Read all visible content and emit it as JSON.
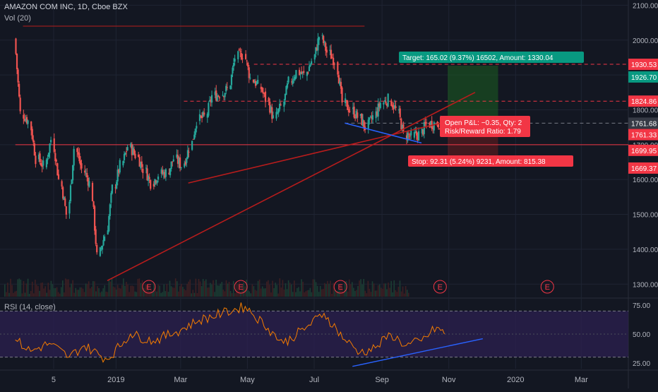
{
  "header": {
    "symbol": "AMAZON COM INC, 1D, Cboe BZX",
    "volume": "Vol (20)"
  },
  "rsi_panel": {
    "label": "RSI (14, close)",
    "ticks": [
      "75.00",
      "50.00",
      "25.00"
    ]
  },
  "colors": {
    "background": "#131722",
    "grid": "#1f2433",
    "up": "#26a69a",
    "down": "#ef5350",
    "trend_red": "#b71c1c",
    "trend_blue": "#2962ff",
    "rsi_line": "#f57c00",
    "rsi_band": "#2a1f4d",
    "target_box": "#1b5e20",
    "target_label": "#089981",
    "stop_label": "#f23645"
  },
  "chart_data": {
    "type": "candlestick",
    "title": "AMAZON COM INC, 1D, Cboe BZX",
    "indicator": "Vol (20)",
    "y_ticks": [
      1300,
      1400,
      1500,
      1600,
      1700,
      1800,
      1900,
      2000,
      2100
    ],
    "ylim": [
      1260,
      2115
    ],
    "x_ticks": [
      "5",
      "2019",
      "Mar",
      "May",
      "Jul",
      "Sep",
      "Nov",
      "2020",
      "Mar"
    ],
    "price_labels": [
      {
        "value": "1930.53",
        "color": "#f23645",
        "style": "dashed"
      },
      {
        "value": "1926.70",
        "color": "#089981",
        "style": "box"
      },
      {
        "value": "1824.86",
        "color": "#f23645",
        "style": "dashed"
      },
      {
        "value": "1761.68",
        "color": "#787b86",
        "style": "dotted"
      },
      {
        "value": "1761.33",
        "color": "#f23645",
        "style": "box"
      },
      {
        "value": "1699.95",
        "color": "#f23645",
        "style": "solid"
      },
      {
        "value": "1669.37",
        "color": "#f23645",
        "style": "box"
      }
    ],
    "horizontal_levels": [
      {
        "value": 2040,
        "from": "2018-10-08",
        "to": "2019-08-16",
        "color": "#b71c1c"
      },
      {
        "value": 1930.53,
        "from": "2019-05-07",
        "to": "2020-04-30",
        "color": "#f23645",
        "dash": true
      },
      {
        "value": 1824.86,
        "from": "2019-03-04",
        "to": "2020-04-30",
        "color": "#f23645",
        "dash": true
      },
      {
        "value": 1761.68,
        "from": "2019-07-29",
        "to": "2020-04-30",
        "color": "#787b86",
        "dash": true
      },
      {
        "value": 1699.95,
        "from": "2018-10-01",
        "to": "2020-04-30",
        "color": "#f23645",
        "dash": false
      }
    ],
    "trendlines": [
      {
        "from": [
          "2018-12-24",
          1310
        ],
        "to": [
          "2019-11-25",
          1850
        ],
        "color": "#b71c1c"
      },
      {
        "from": [
          "2019-03-08",
          1590
        ],
        "to": [
          "2019-11-05",
          1770
        ],
        "color": "#b71c1c"
      },
      {
        "from": [
          "2019-07-29",
          1762
        ],
        "to": [
          "2019-10-07",
          1705
        ],
        "color": "#2962ff"
      }
    ],
    "position": {
      "entry": 1761.33,
      "target": 1926.7,
      "stop": 1669.37,
      "start": "2019-10-31",
      "end": "2019-12-16",
      "target_text": "Target: 165.02 (9.37%) 16502, Amount: 1330.04",
      "stop_text": "Stop: 92.31 (5.24%) 9231, Amount: 815.38",
      "pnl_text": [
        "Open P&L: −0.35, Qty: 2",
        "Risk/Reward Ratio: 1.79"
      ]
    },
    "earnings_markers": {
      "label": "E",
      "dates": [
        "2019-01-31",
        "2019-04-25",
        "2019-07-25",
        "2019-10-24",
        "2020-01-30"
      ]
    },
    "closes": [
      [
        "2018-10-01",
        2004
      ],
      [
        "2018-10-08",
        1790
      ],
      [
        "2018-10-15",
        1768
      ],
      [
        "2018-10-22",
        1660
      ],
      [
        "2018-10-29",
        1640
      ],
      [
        "2018-11-05",
        1715
      ],
      [
        "2018-11-12",
        1600
      ],
      [
        "2018-11-19",
        1500
      ],
      [
        "2018-11-26",
        1690
      ],
      [
        "2018-12-03",
        1630
      ],
      [
        "2018-12-10",
        1590
      ],
      [
        "2018-12-17",
        1380
      ],
      [
        "2018-12-24",
        1440
      ],
      [
        "2018-12-31",
        1575
      ],
      [
        "2019-01-07",
        1640
      ],
      [
        "2019-01-14",
        1695
      ],
      [
        "2019-01-21",
        1670
      ],
      [
        "2019-01-28",
        1630
      ],
      [
        "2019-02-04",
        1590
      ],
      [
        "2019-02-11",
        1615
      ],
      [
        "2019-02-18",
        1620
      ],
      [
        "2019-02-25",
        1660
      ],
      [
        "2019-03-04",
        1640
      ],
      [
        "2019-03-11",
        1690
      ],
      [
        "2019-03-18",
        1770
      ],
      [
        "2019-03-25",
        1780
      ],
      [
        "2019-04-01",
        1840
      ],
      [
        "2019-04-08",
        1845
      ],
      [
        "2019-04-15",
        1860
      ],
      [
        "2019-04-22",
        1950
      ],
      [
        "2019-04-29",
        1960
      ],
      [
        "2019-05-06",
        1890
      ],
      [
        "2019-05-13",
        1870
      ],
      [
        "2019-05-20",
        1830
      ],
      [
        "2019-05-27",
        1775
      ],
      [
        "2019-06-03",
        1810
      ],
      [
        "2019-06-10",
        1880
      ],
      [
        "2019-06-17",
        1910
      ],
      [
        "2019-06-24",
        1900
      ],
      [
        "2019-07-01",
        1940
      ],
      [
        "2019-07-08",
        2011
      ],
      [
        "2019-07-15",
        1965
      ],
      [
        "2019-07-22",
        1940
      ],
      [
        "2019-07-29",
        1820
      ],
      [
        "2019-08-05",
        1800
      ],
      [
        "2019-08-12",
        1780
      ],
      [
        "2019-08-19",
        1750
      ],
      [
        "2019-08-26",
        1780
      ],
      [
        "2019-09-02",
        1820
      ],
      [
        "2019-09-09",
        1830
      ],
      [
        "2019-09-16",
        1800
      ],
      [
        "2019-09-23",
        1730
      ],
      [
        "2019-09-30",
        1725
      ],
      [
        "2019-10-07",
        1730
      ],
      [
        "2019-10-14",
        1760
      ],
      [
        "2019-10-21",
        1761
      ],
      [
        "2019-10-28",
        1761
      ]
    ],
    "rsi": {
      "ylim": [
        20,
        80
      ],
      "bands": [
        70,
        30
      ],
      "values": [
        [
          "2018-10-01",
          45
        ],
        [
          "2018-10-15",
          35
        ],
        [
          "2018-11-01",
          42
        ],
        [
          "2018-11-19",
          30
        ],
        [
          "2018-12-03",
          40
        ],
        [
          "2018-12-24",
          28
        ],
        [
          "2019-01-14",
          50
        ],
        [
          "2019-02-04",
          44
        ],
        [
          "2019-02-25",
          52
        ],
        [
          "2019-03-18",
          62
        ],
        [
          "2019-04-08",
          68
        ],
        [
          "2019-04-29",
          74
        ],
        [
          "2019-05-20",
          55
        ],
        [
          "2019-06-03",
          42
        ],
        [
          "2019-06-24",
          56
        ],
        [
          "2019-07-10",
          68
        ],
        [
          "2019-07-29",
          45
        ],
        [
          "2019-08-12",
          34
        ],
        [
          "2019-08-26",
          38
        ],
        [
          "2019-09-09",
          50
        ],
        [
          "2019-09-23",
          40
        ],
        [
          "2019-10-07",
          44
        ],
        [
          "2019-10-21",
          56
        ],
        [
          "2019-10-28",
          50
        ]
      ],
      "trendline": {
        "from": [
          "2019-08-05",
          22
        ],
        "to": [
          "2019-12-02",
          46
        ],
        "color": "#2962ff"
      }
    }
  }
}
